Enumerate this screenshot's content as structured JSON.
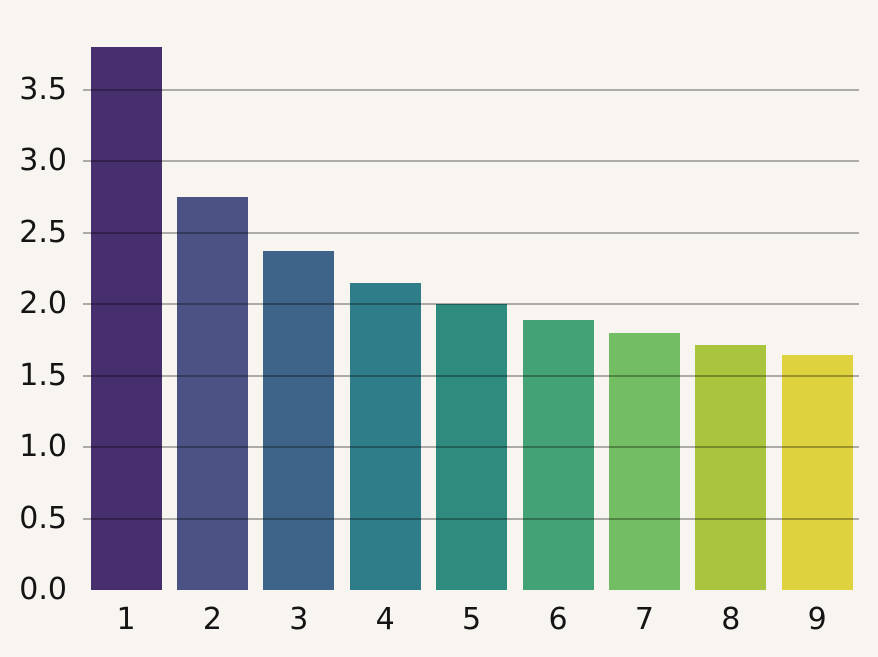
{
  "chart_data": {
    "type": "bar",
    "title": "",
    "xlabel": "",
    "ylabel": "",
    "categories": [
      "1",
      "2",
      "3",
      "4",
      "5",
      "6",
      "7",
      "8",
      "9"
    ],
    "values": [
      3.8,
      2.75,
      2.37,
      2.15,
      2.0,
      1.89,
      1.8,
      1.71,
      1.64
    ],
    "bar_colors": [
      "#472f6e",
      "#4b5384",
      "#3e6589",
      "#2f7d88",
      "#2e8b7d",
      "#44a376",
      "#73bd63",
      "#a9c53e",
      "#ded23f"
    ],
    "palette": "viridis-desaturated",
    "ylim": [
      0.0,
      3.85
    ],
    "yticks": [
      0.0,
      0.5,
      1.0,
      1.5,
      2.0,
      2.5,
      3.0,
      3.5
    ],
    "ytick_labels": [
      "0.0",
      "0.5",
      "1.0",
      "1.5",
      "2.0",
      "2.5",
      "3.0",
      "3.5"
    ],
    "grid": "horizontal gridlines every 0.5, drawn over bars",
    "legend": "none"
  },
  "colors": {
    "background": "#f8f5f0",
    "tick_label": "#141414",
    "gridline_base": "#b3b1ae"
  }
}
